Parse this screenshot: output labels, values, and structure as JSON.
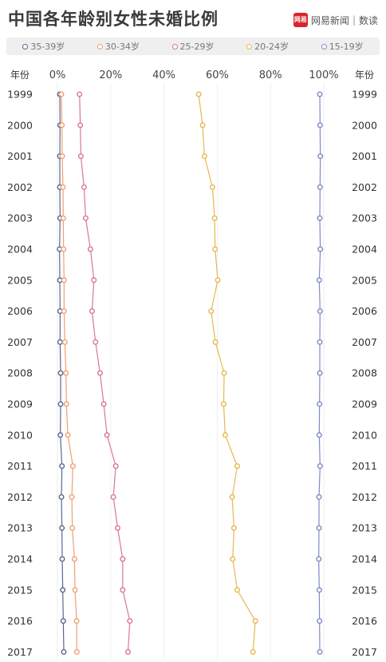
{
  "header": {
    "title": "中国各年龄别女性未婚比例",
    "brand_logo": "网易",
    "brand_name": "网易新闻",
    "brand_section": "数读"
  },
  "chart_data": {
    "type": "line",
    "title": "中国各年龄别女性未婚比例",
    "axis_label_left": "年份",
    "axis_label_right": "年份",
    "x_ticks": [
      "0%",
      "20%",
      "40%",
      "60%",
      "80%",
      "100%"
    ],
    "xlim": [
      0,
      100
    ],
    "grid": true,
    "legend_placement": "top",
    "years": [
      1999,
      2000,
      2001,
      2002,
      2003,
      2004,
      2005,
      2006,
      2007,
      2008,
      2009,
      2010,
      2011,
      2012,
      2013,
      2014,
      2015,
      2016,
      2017
    ],
    "series": [
      {
        "name": "35-39岁",
        "color": "#5a6690",
        "values": [
          0.9,
          1.0,
          0.9,
          0.9,
          1.0,
          0.8,
          0.9,
          1.0,
          1.0,
          1.2,
          1.2,
          1.1,
          1.7,
          1.5,
          1.7,
          1.8,
          2.0,
          2.2,
          2.4
        ]
      },
      {
        "name": "30-34岁",
        "color": "#f0a072",
        "values": [
          1.5,
          1.7,
          1.8,
          2.1,
          2.2,
          2.3,
          2.5,
          2.5,
          2.8,
          3.2,
          3.4,
          3.9,
          5.8,
          5.4,
          5.6,
          6.4,
          6.6,
          7.2,
          7.3
        ]
      },
      {
        "name": "25-29岁",
        "color": "#d9788c",
        "values": [
          8.3,
          8.6,
          8.8,
          10.0,
          10.6,
          12.4,
          13.7,
          13.0,
          14.3,
          16.0,
          17.4,
          18.6,
          21.9,
          21.0,
          22.6,
          24.5,
          24.5,
          27.2,
          26.5
        ]
      },
      {
        "name": "20-24岁",
        "color": "#e8b84f",
        "values": [
          53.0,
          54.5,
          55.2,
          58.2,
          59.0,
          59.2,
          60.2,
          57.7,
          59.3,
          62.6,
          62.4,
          63.0,
          67.5,
          65.6,
          66.3,
          65.8,
          67.5,
          74.3,
          73.4
        ]
      },
      {
        "name": "15-19岁",
        "color": "#7f8ac9",
        "values": [
          98.5,
          98.6,
          98.7,
          98.6,
          98.5,
          98.7,
          98.3,
          98.6,
          98.5,
          98.5,
          98.4,
          98.3,
          98.6,
          98.2,
          98.2,
          98.1,
          98.3,
          98.4,
          98.5
        ]
      }
    ]
  }
}
